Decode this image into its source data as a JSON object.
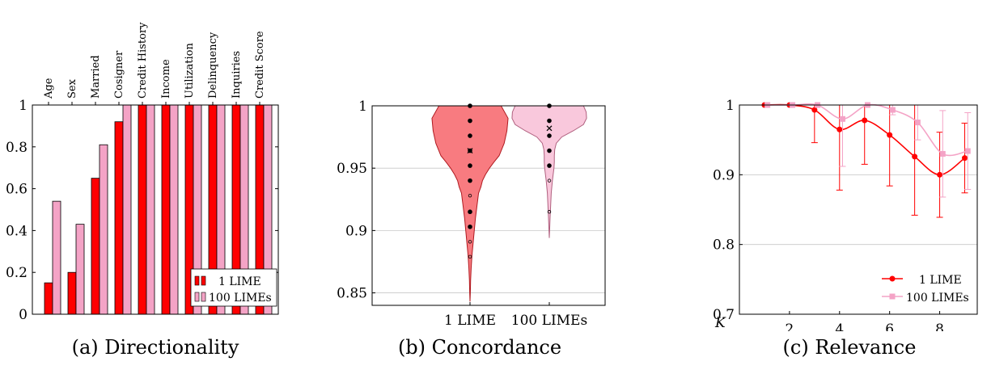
{
  "colors": {
    "lime_1": "#ff0000",
    "lime_100": "#f4a3c6",
    "violin_1": "#f87b80",
    "violin_100": "#f9c8dc"
  },
  "chart_data": [
    {
      "type": "bar",
      "caption": "(a) Directionality",
      "categories": [
        "Age",
        "Sex",
        "Married",
        "Cosigner",
        "Credit History",
        "Income",
        "Utilization",
        "Delinquency",
        "Inquiries",
        "Credit Score"
      ],
      "series": [
        {
          "name": "1 LIME",
          "values": [
            0.15,
            0.2,
            0.65,
            0.92,
            1,
            1,
            1,
            1,
            1,
            1
          ]
        },
        {
          "name": "100 LIMEs",
          "values": [
            0.54,
            0.43,
            0.81,
            1,
            1,
            1,
            1,
            1,
            1,
            1
          ]
        }
      ],
      "ylim": [
        0,
        1
      ],
      "yticks": [
        "0",
        "0.2",
        "0.4",
        "0.6",
        "0.8",
        "1"
      ],
      "legend": "bottom-right"
    },
    {
      "type": "violin",
      "caption": "(b) Concordance",
      "categories": [
        "1 LIME",
        "100 LIMEs"
      ],
      "ylim": [
        0.84,
        1
      ],
      "yticks": [
        "0.85",
        "0.9",
        "0.95",
        "1"
      ],
      "grid": true,
      "violins": [
        {
          "name": "1 LIME",
          "range": [
            0.843,
            1
          ],
          "mean": 0.964,
          "points": [
            1,
            0.988,
            0.976,
            0.964,
            0.952,
            0.94,
            0.928,
            0.915,
            0.903,
            0.891,
            0.879
          ],
          "profile": [
            [
              1,
              0.8
            ],
            [
              0.99,
              0.98
            ],
            [
              0.98,
              0.95
            ],
            [
              0.97,
              0.88
            ],
            [
              0.96,
              0.75
            ],
            [
              0.955,
              0.62
            ],
            [
              0.95,
              0.5
            ],
            [
              0.945,
              0.4
            ],
            [
              0.94,
              0.32
            ],
            [
              0.935,
              0.28
            ],
            [
              0.93,
              0.22
            ],
            [
              0.925,
              0.2
            ],
            [
              0.92,
              0.18
            ],
            [
              0.915,
              0.16
            ],
            [
              0.91,
              0.14
            ],
            [
              0.9,
              0.11
            ],
            [
              0.89,
              0.08
            ],
            [
              0.88,
              0.05
            ],
            [
              0.87,
              0.03
            ],
            [
              0.86,
              0.015
            ],
            [
              0.85,
              0.008
            ],
            [
              0.843,
              0
            ]
          ]
        },
        {
          "name": "100 LIMEs",
          "range": [
            0.894,
            1
          ],
          "mean": 0.982,
          "points": [
            1,
            0.988,
            0.976,
            0.964,
            0.952,
            0.94,
            0.915
          ],
          "profile": [
            [
              1,
              0.88
            ],
            [
              0.995,
              0.95
            ],
            [
              0.99,
              0.96
            ],
            [
              0.985,
              0.88
            ],
            [
              0.98,
              0.62
            ],
            [
              0.975,
              0.32
            ],
            [
              0.97,
              0.18
            ],
            [
              0.965,
              0.14
            ],
            [
              0.96,
              0.13
            ],
            [
              0.955,
              0.13
            ],
            [
              0.95,
              0.12
            ],
            [
              0.945,
              0.1
            ],
            [
              0.94,
              0.08
            ],
            [
              0.93,
              0.05
            ],
            [
              0.92,
              0.035
            ],
            [
              0.91,
              0.02
            ],
            [
              0.9,
              0.008
            ],
            [
              0.894,
              0
            ]
          ]
        }
      ]
    },
    {
      "type": "line",
      "caption": "(c) Relevance",
      "xlabel": "K",
      "x": [
        1,
        2,
        3,
        4,
        5,
        6,
        7,
        8,
        9
      ],
      "xlim": [
        0,
        9.5
      ],
      "xticks": [
        "2",
        "4",
        "6",
        "8"
      ],
      "ylim": [
        0.7,
        1
      ],
      "yticks": [
        "0.7",
        "0.8",
        "0.9",
        "1"
      ],
      "grid": true,
      "legend": "bottom-right",
      "series": [
        {
          "name": "1 LIME",
          "values": [
            1,
            1,
            0.993,
            0.965,
            0.978,
            0.957,
            0.926,
            0.9,
            0.924
          ],
          "err": [
            0,
            0,
            0.047,
            0.087,
            0.063,
            0.073,
            0.084,
            0.061,
            0.05
          ]
        },
        {
          "name": "100 LIMEs",
          "values": [
            1,
            1,
            1,
            0.98,
            1,
            0.993,
            0.975,
            0.93,
            0.934
          ],
          "err": [
            0,
            0,
            0,
            0.068,
            0,
            0.007,
            0.025,
            0.062,
            0.055
          ]
        }
      ]
    }
  ]
}
